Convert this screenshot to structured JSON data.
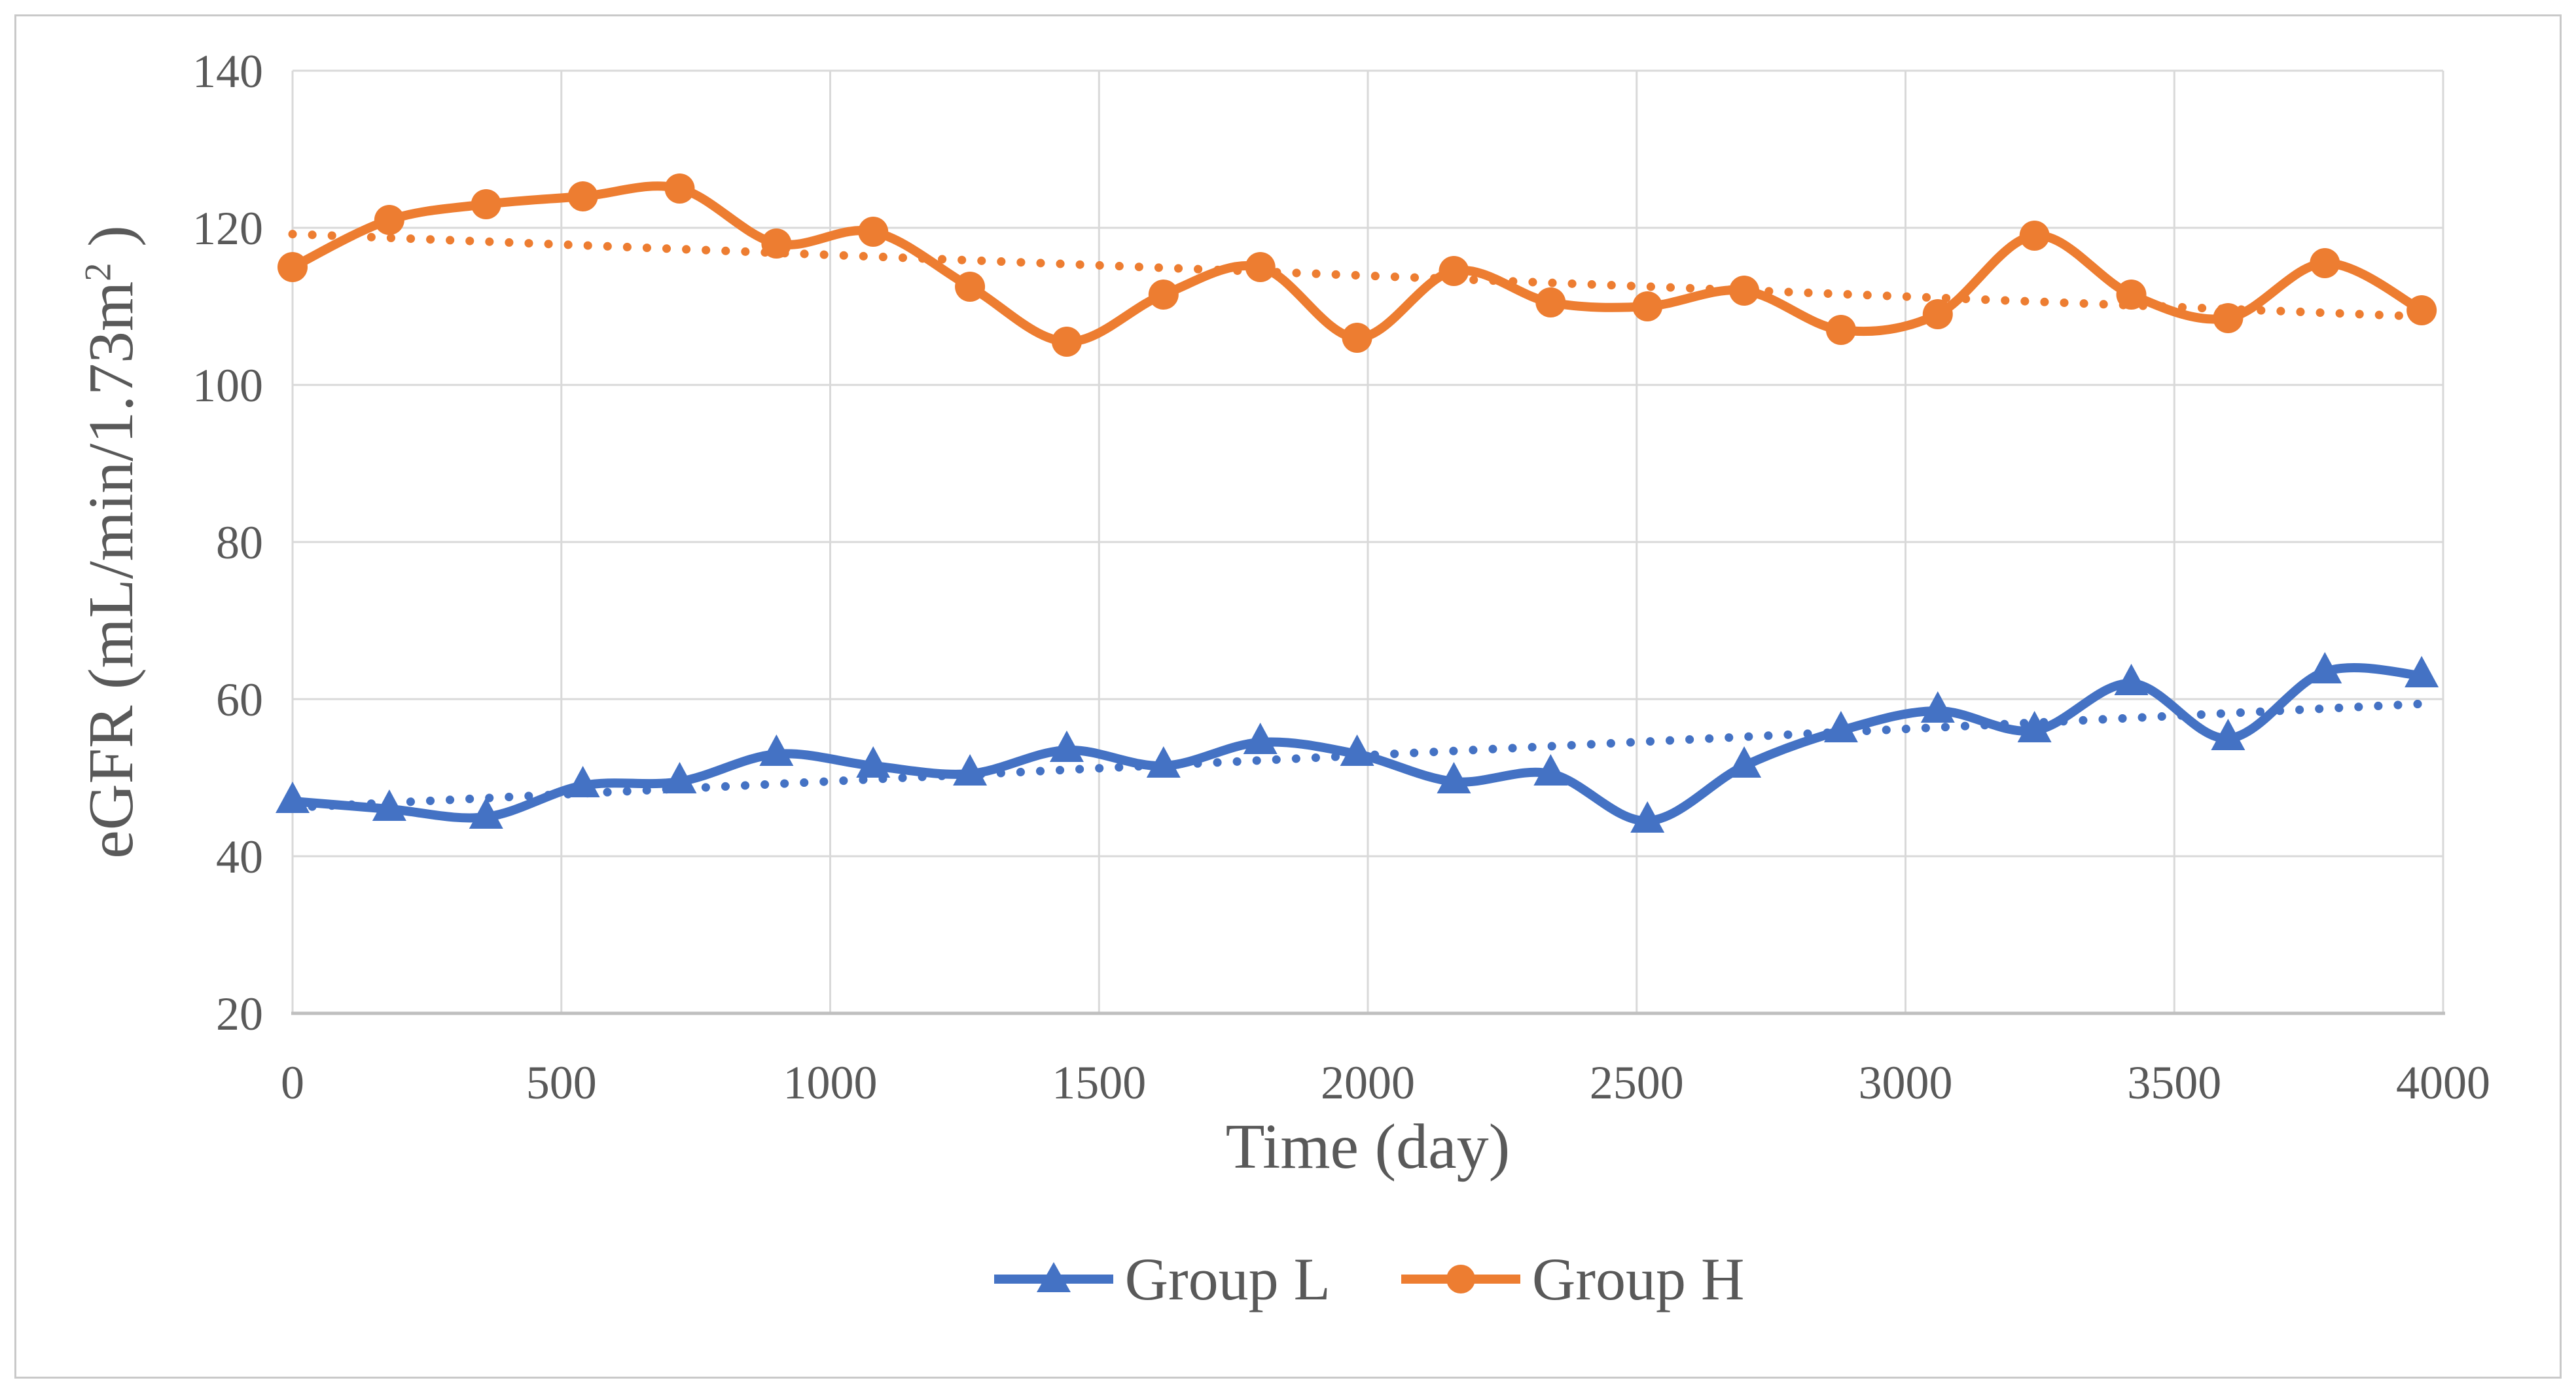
{
  "window": {
    "background": "#FFFFFF",
    "frame_border_color": "#C9C9C9"
  },
  "chart_data": {
    "type": "line",
    "title": "",
    "xlabel": "Time (day)",
    "ylabel": "eGFR (mL/min/1.73m² )",
    "ylabel_parts": {
      "prefix": "eGFR (mL/min/1.73m",
      "superscript": "2",
      "suffix": " )"
    },
    "xlim": [
      0,
      4000
    ],
    "ylim": [
      20,
      140
    ],
    "x_ticks": [
      0,
      500,
      1000,
      1500,
      2000,
      2500,
      3000,
      3500,
      4000
    ],
    "y_ticks": [
      20,
      40,
      60,
      80,
      100,
      120,
      140
    ],
    "grid": true,
    "legend_position": "bottom",
    "axis_text_color": "#595959",
    "gridline_color": "#D9D9D9",
    "axis_line_color": "#BFBFBF",
    "x": [
      0,
      180,
      360,
      540,
      720,
      900,
      1080,
      1260,
      1440,
      1620,
      1800,
      1980,
      2160,
      2340,
      2520,
      2700,
      2880,
      3060,
      3240,
      3420,
      3600,
      3780,
      3960
    ],
    "series": [
      {
        "name": "Group L",
        "color": "#4472C4",
        "marker": "triangle",
        "line_style": "solid-smooth",
        "values": [
          47,
          46,
          45,
          49,
          49.5,
          53,
          51.5,
          50.5,
          53.5,
          51.5,
          54.5,
          53,
          49.5,
          50.5,
          44.5,
          51.5,
          56,
          58.5,
          56,
          62,
          55,
          63.5,
          63
        ],
        "trendline": {
          "style": "dotted",
          "x_start": 0,
          "y_start": 46.2,
          "x_end": 3960,
          "y_end": 59.4
        }
      },
      {
        "name": "Group H",
        "color": "#ED7D31",
        "marker": "circle",
        "line_style": "solid-smooth",
        "values": [
          115,
          121,
          123,
          124,
          125,
          118,
          119.5,
          112.5,
          105.5,
          111.5,
          115,
          106,
          114.5,
          110.5,
          110,
          112,
          107,
          109,
          119,
          111.5,
          108.5,
          115.5,
          109.5
        ],
        "trendline": {
          "style": "dotted",
          "x_start": 0,
          "y_start": 119.2,
          "x_end": 3960,
          "y_end": 108.7
        }
      }
    ]
  },
  "legend": {
    "items": [
      {
        "label": "Group L",
        "color": "#4472C4",
        "marker": "triangle"
      },
      {
        "label": "Group H",
        "color": "#ED7D31",
        "marker": "circle"
      }
    ]
  }
}
